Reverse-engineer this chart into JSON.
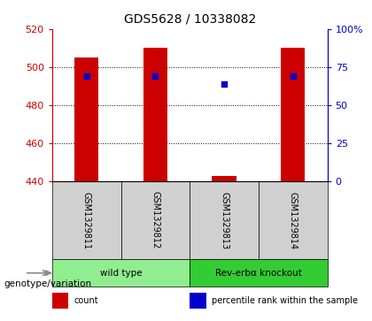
{
  "title": "GDS5628 / 10338082",
  "samples": [
    "GSM1329811",
    "GSM1329812",
    "GSM1329813",
    "GSM1329814"
  ],
  "counts": [
    505,
    510,
    443,
    510
  ],
  "percentiles": [
    69,
    69,
    64,
    69
  ],
  "ylim_left": [
    440,
    520
  ],
  "ylim_right": [
    0,
    100
  ],
  "yticks_left": [
    440,
    460,
    480,
    500,
    520
  ],
  "yticks_right": [
    0,
    25,
    50,
    75,
    100
  ],
  "bar_color": "#cc0000",
  "dot_color": "#0000cc",
  "bar_width": 0.35,
  "groups": [
    {
      "label": "wild type",
      "samples": [
        0,
        1
      ],
      "color": "#90ee90"
    },
    {
      "label": "Rev-erbα knockout",
      "samples": [
        2,
        3
      ],
      "color": "#33cc33"
    }
  ],
  "legend_items": [
    {
      "label": "count",
      "color": "#cc0000"
    },
    {
      "label": "percentile rank within the sample",
      "color": "#0000cc"
    }
  ],
  "genotype_label": "genotype/variation",
  "title_color": "#000000",
  "left_axis_color": "#cc0000",
  "right_axis_color": "#0000cc",
  "sample_cell_color": "#d0d0d0",
  "fig_bg": "#ffffff"
}
